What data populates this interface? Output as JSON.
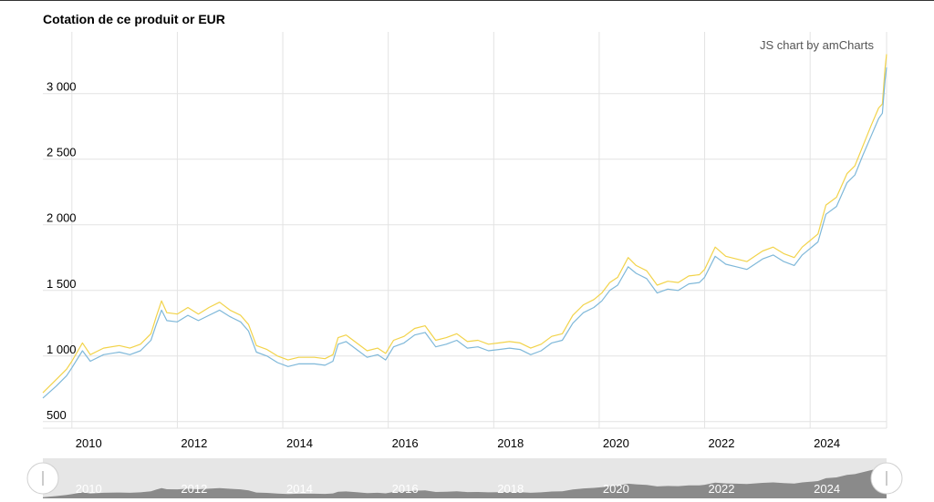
{
  "title": "Cotation de ce produit or EUR",
  "credit": "JS chart by amCharts",
  "colors": {
    "ask": "#f2d34a",
    "bid": "#7fb8d9",
    "grid": "#e3e3e3",
    "navigator_fill": "#8a8a8a",
    "navigator_bg": "#e6e6e6"
  },
  "chart_data": {
    "type": "line",
    "title": "Cotation de ce produit or EUR",
    "xlabel": "",
    "ylabel": "",
    "x_ticks": [
      "2010",
      "2012",
      "2014",
      "2016",
      "2018",
      "2020",
      "2022",
      "2024"
    ],
    "y_ticks": [
      "500",
      "1 000",
      "1 500",
      "2 000",
      "2 500",
      "3 000"
    ],
    "y_tick_values": [
      500,
      1000,
      1500,
      2000,
      2500,
      3000
    ],
    "xlim": [
      2009.45,
      2025.45
    ],
    "ylim": [
      450,
      3470
    ],
    "grid": true,
    "series": [
      {
        "color": "#f2d34a",
        "points": [
          [
            2009.45,
            720
          ],
          [
            2009.7,
            820
          ],
          [
            2009.9,
            900
          ],
          [
            2010.0,
            960
          ],
          [
            2010.2,
            1100
          ],
          [
            2010.35,
            1010
          ],
          [
            2010.6,
            1060
          ],
          [
            2010.9,
            1080
          ],
          [
            2011.1,
            1060
          ],
          [
            2011.3,
            1090
          ],
          [
            2011.5,
            1170
          ],
          [
            2011.6,
            1300
          ],
          [
            2011.7,
            1420
          ],
          [
            2011.8,
            1330
          ],
          [
            2012.0,
            1320
          ],
          [
            2012.2,
            1370
          ],
          [
            2012.4,
            1320
          ],
          [
            2012.6,
            1370
          ],
          [
            2012.8,
            1410
          ],
          [
            2013.0,
            1350
          ],
          [
            2013.2,
            1310
          ],
          [
            2013.35,
            1240
          ],
          [
            2013.5,
            1080
          ],
          [
            2013.7,
            1050
          ],
          [
            2013.9,
            1000
          ],
          [
            2014.1,
            970
          ],
          [
            2014.3,
            990
          ],
          [
            2014.6,
            990
          ],
          [
            2014.8,
            980
          ],
          [
            2014.95,
            1010
          ],
          [
            2015.05,
            1140
          ],
          [
            2015.2,
            1160
          ],
          [
            2015.4,
            1100
          ],
          [
            2015.6,
            1040
          ],
          [
            2015.8,
            1060
          ],
          [
            2015.95,
            1020
          ],
          [
            2016.1,
            1120
          ],
          [
            2016.3,
            1150
          ],
          [
            2016.5,
            1210
          ],
          [
            2016.7,
            1230
          ],
          [
            2016.9,
            1120
          ],
          [
            2017.1,
            1140
          ],
          [
            2017.3,
            1170
          ],
          [
            2017.5,
            1110
          ],
          [
            2017.7,
            1120
          ],
          [
            2017.9,
            1090
          ],
          [
            2018.1,
            1100
          ],
          [
            2018.3,
            1110
          ],
          [
            2018.5,
            1100
          ],
          [
            2018.7,
            1060
          ],
          [
            2018.9,
            1090
          ],
          [
            2019.1,
            1150
          ],
          [
            2019.3,
            1170
          ],
          [
            2019.5,
            1310
          ],
          [
            2019.7,
            1390
          ],
          [
            2019.9,
            1430
          ],
          [
            2020.05,
            1480
          ],
          [
            2020.2,
            1560
          ],
          [
            2020.35,
            1600
          ],
          [
            2020.55,
            1750
          ],
          [
            2020.7,
            1690
          ],
          [
            2020.9,
            1650
          ],
          [
            2021.1,
            1540
          ],
          [
            2021.3,
            1570
          ],
          [
            2021.5,
            1560
          ],
          [
            2021.7,
            1610
          ],
          [
            2021.9,
            1620
          ],
          [
            2022.0,
            1660
          ],
          [
            2022.2,
            1830
          ],
          [
            2022.4,
            1760
          ],
          [
            2022.6,
            1740
          ],
          [
            2022.8,
            1720
          ],
          [
            2022.95,
            1760
          ],
          [
            2023.1,
            1800
          ],
          [
            2023.3,
            1830
          ],
          [
            2023.5,
            1780
          ],
          [
            2023.7,
            1750
          ],
          [
            2023.85,
            1830
          ],
          [
            2024.0,
            1880
          ],
          [
            2024.15,
            1930
          ],
          [
            2024.3,
            2150
          ],
          [
            2024.5,
            2210
          ],
          [
            2024.7,
            2390
          ],
          [
            2024.85,
            2450
          ],
          [
            2025.0,
            2600
          ],
          [
            2025.15,
            2750
          ],
          [
            2025.3,
            2890
          ],
          [
            2025.37,
            2920
          ],
          [
            2025.42,
            3190
          ],
          [
            2025.45,
            3300
          ]
        ]
      },
      {
        "color": "#7fb8d9",
        "points": [
          [
            2009.45,
            680
          ],
          [
            2009.7,
            770
          ],
          [
            2009.9,
            850
          ],
          [
            2010.0,
            910
          ],
          [
            2010.2,
            1040
          ],
          [
            2010.35,
            960
          ],
          [
            2010.6,
            1010
          ],
          [
            2010.9,
            1030
          ],
          [
            2011.1,
            1010
          ],
          [
            2011.3,
            1040
          ],
          [
            2011.5,
            1120
          ],
          [
            2011.6,
            1240
          ],
          [
            2011.7,
            1350
          ],
          [
            2011.8,
            1270
          ],
          [
            2012.0,
            1260
          ],
          [
            2012.2,
            1310
          ],
          [
            2012.4,
            1270
          ],
          [
            2012.6,
            1310
          ],
          [
            2012.8,
            1350
          ],
          [
            2013.0,
            1300
          ],
          [
            2013.2,
            1260
          ],
          [
            2013.35,
            1190
          ],
          [
            2013.5,
            1030
          ],
          [
            2013.7,
            1000
          ],
          [
            2013.9,
            950
          ],
          [
            2014.1,
            920
          ],
          [
            2014.3,
            940
          ],
          [
            2014.6,
            940
          ],
          [
            2014.8,
            930
          ],
          [
            2014.95,
            960
          ],
          [
            2015.05,
            1090
          ],
          [
            2015.2,
            1110
          ],
          [
            2015.4,
            1050
          ],
          [
            2015.6,
            990
          ],
          [
            2015.8,
            1010
          ],
          [
            2015.95,
            970
          ],
          [
            2016.1,
            1070
          ],
          [
            2016.3,
            1100
          ],
          [
            2016.5,
            1160
          ],
          [
            2016.7,
            1180
          ],
          [
            2016.9,
            1070
          ],
          [
            2017.1,
            1090
          ],
          [
            2017.3,
            1120
          ],
          [
            2017.5,
            1060
          ],
          [
            2017.7,
            1070
          ],
          [
            2017.9,
            1040
          ],
          [
            2018.1,
            1050
          ],
          [
            2018.3,
            1060
          ],
          [
            2018.5,
            1050
          ],
          [
            2018.7,
            1010
          ],
          [
            2018.9,
            1040
          ],
          [
            2019.1,
            1100
          ],
          [
            2019.3,
            1120
          ],
          [
            2019.5,
            1250
          ],
          [
            2019.7,
            1330
          ],
          [
            2019.9,
            1370
          ],
          [
            2020.05,
            1420
          ],
          [
            2020.2,
            1500
          ],
          [
            2020.35,
            1540
          ],
          [
            2020.55,
            1680
          ],
          [
            2020.7,
            1630
          ],
          [
            2020.9,
            1590
          ],
          [
            2021.1,
            1480
          ],
          [
            2021.3,
            1510
          ],
          [
            2021.5,
            1500
          ],
          [
            2021.7,
            1550
          ],
          [
            2021.9,
            1560
          ],
          [
            2022.0,
            1600
          ],
          [
            2022.2,
            1760
          ],
          [
            2022.4,
            1700
          ],
          [
            2022.6,
            1680
          ],
          [
            2022.8,
            1660
          ],
          [
            2022.95,
            1700
          ],
          [
            2023.1,
            1740
          ],
          [
            2023.3,
            1770
          ],
          [
            2023.5,
            1720
          ],
          [
            2023.7,
            1690
          ],
          [
            2023.85,
            1770
          ],
          [
            2024.0,
            1820
          ],
          [
            2024.15,
            1870
          ],
          [
            2024.3,
            2080
          ],
          [
            2024.5,
            2140
          ],
          [
            2024.7,
            2320
          ],
          [
            2024.85,
            2380
          ],
          [
            2025.0,
            2530
          ],
          [
            2025.15,
            2670
          ],
          [
            2025.3,
            2810
          ],
          [
            2025.37,
            2850
          ],
          [
            2025.42,
            3100
          ],
          [
            2025.45,
            3200
          ]
        ]
      }
    ]
  }
}
